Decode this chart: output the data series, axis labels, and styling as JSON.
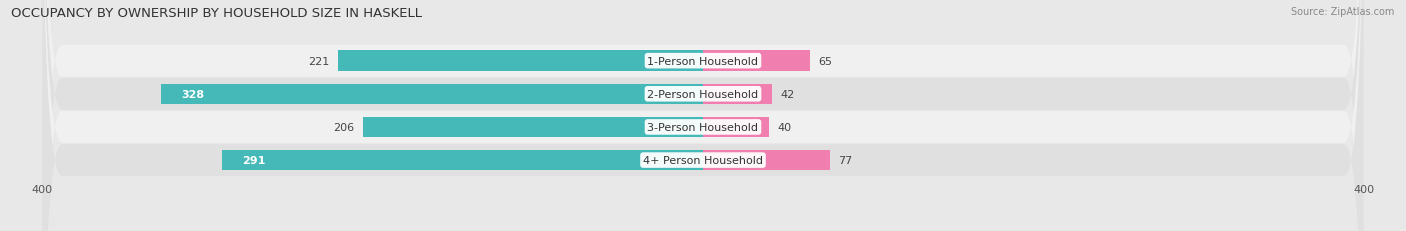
{
  "title": "OCCUPANCY BY OWNERSHIP BY HOUSEHOLD SIZE IN HASKELL",
  "source": "Source: ZipAtlas.com",
  "categories": [
    "1-Person Household",
    "2-Person Household",
    "3-Person Household",
    "4+ Person Household"
  ],
  "owner_values": [
    221,
    328,
    206,
    291
  ],
  "renter_values": [
    65,
    42,
    40,
    77
  ],
  "owner_color": "#45b8b8",
  "renter_color": "#f07eae",
  "axis_max": 400,
  "background_color": "#e8e8e8",
  "row_colors": [
    "#f0f0f0",
    "#e0e0e0",
    "#f0f0f0",
    "#e0e0e0"
  ],
  "title_fontsize": 9.5,
  "label_fontsize": 8,
  "tick_fontsize": 8,
  "bar_height": 0.62
}
